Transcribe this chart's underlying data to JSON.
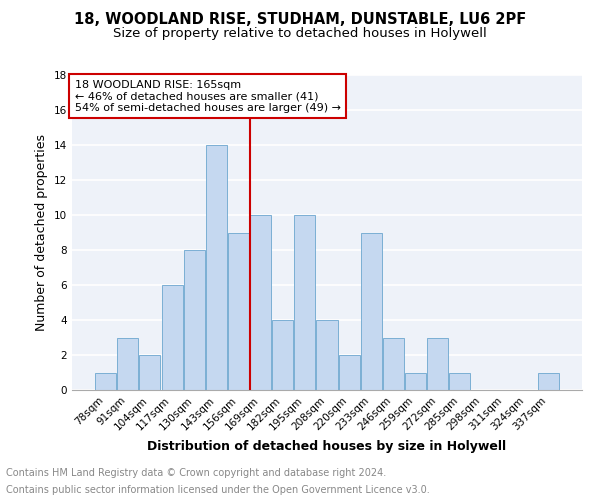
{
  "title": "18, WOODLAND RISE, STUDHAM, DUNSTABLE, LU6 2PF",
  "subtitle": "Size of property relative to detached houses in Holywell",
  "xlabel": "Distribution of detached houses by size in Holywell",
  "ylabel": "Number of detached properties",
  "categories": [
    "78sqm",
    "91sqm",
    "104sqm",
    "117sqm",
    "130sqm",
    "143sqm",
    "156sqm",
    "169sqm",
    "182sqm",
    "195sqm",
    "208sqm",
    "220sqm",
    "233sqm",
    "246sqm",
    "259sqm",
    "272sqm",
    "285sqm",
    "298sqm",
    "311sqm",
    "324sqm",
    "337sqm"
  ],
  "values": [
    1,
    3,
    2,
    6,
    8,
    14,
    9,
    10,
    4,
    10,
    4,
    2,
    9,
    3,
    1,
    3,
    1,
    0,
    0,
    0,
    1
  ],
  "bar_color": "#c5d8f0",
  "bar_edge_color": "#7bafd4",
  "property_label": "18 WOODLAND RISE: 165sqm",
  "annotation_line1": "← 46% of detached houses are smaller (41)",
  "annotation_line2": "54% of semi-detached houses are larger (49) →",
  "ref_line_color": "#cc0000",
  "annotation_box_color": "#cc0000",
  "ylim": [
    0,
    18
  ],
  "yticks": [
    0,
    2,
    4,
    6,
    8,
    10,
    12,
    14,
    16,
    18
  ],
  "footer_line1": "Contains HM Land Registry data © Crown copyright and database right 2024.",
  "footer_line2": "Contains public sector information licensed under the Open Government Licence v3.0.",
  "bg_color": "#eef2f9",
  "grid_color": "#ffffff",
  "title_fontsize": 10.5,
  "subtitle_fontsize": 9.5,
  "xlabel_fontsize": 9,
  "ylabel_fontsize": 9,
  "tick_fontsize": 7.5,
  "annotation_fontsize": 8,
  "footer_fontsize": 7
}
